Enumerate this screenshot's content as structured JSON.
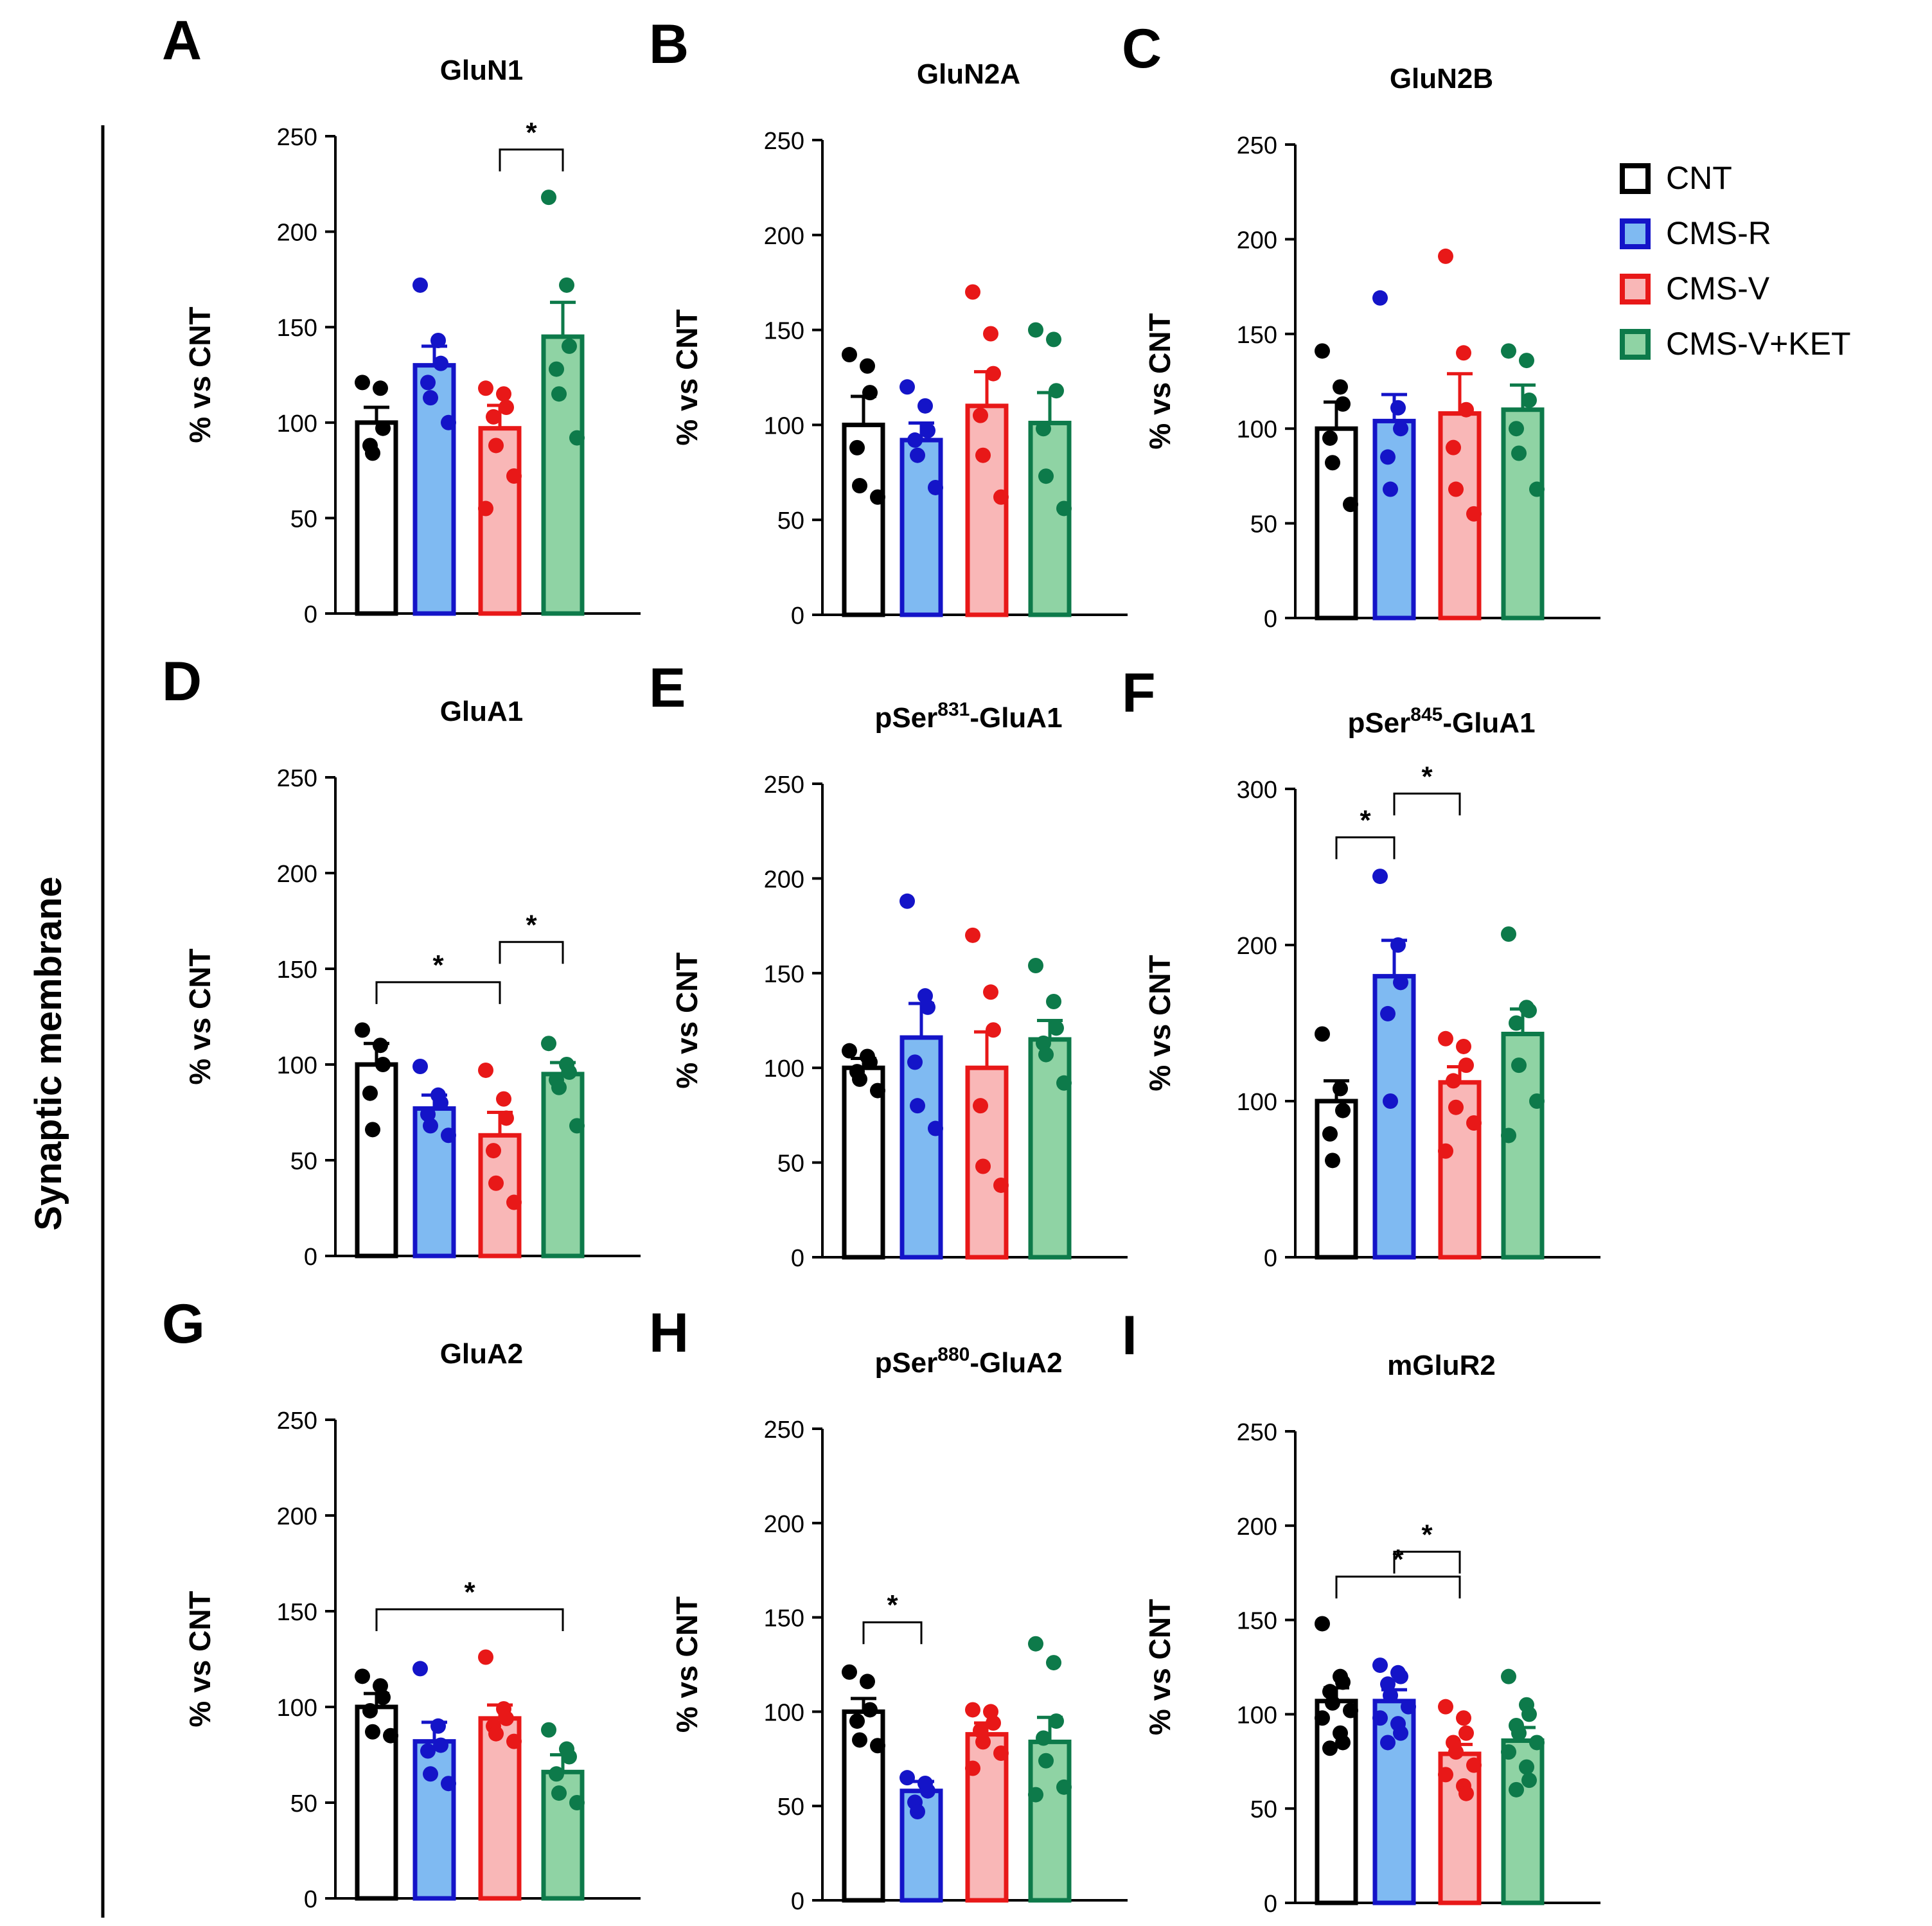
{
  "side_label": "Synaptic membrane",
  "legend": [
    {
      "label": "CNT",
      "fill": "#ffffff",
      "stroke": "#000000"
    },
    {
      "label": "CMS-R",
      "fill": "#7fbaf2",
      "stroke": "#1414c8"
    },
    {
      "label": "CMS-V",
      "fill": "#f9b7b7",
      "stroke": "#e81818"
    },
    {
      "label": "CMS-V+KET",
      "fill": "#8fd3a4",
      "stroke": "#0d7a4a"
    }
  ],
  "colors": {
    "CNT": {
      "fill": "#ffffff",
      "stroke": "#000000",
      "dot": "#000000"
    },
    "CMS-R": {
      "fill": "#7fbaf2",
      "stroke": "#1414c8",
      "dot": "#1414c8"
    },
    "CMS-V": {
      "fill": "#f9b7b7",
      "stroke": "#e81818",
      "dot": "#e81818"
    },
    "CMS-V+KET": {
      "fill": "#8fd3a4",
      "stroke": "#0d7a4a",
      "dot": "#0d7a4a"
    }
  },
  "chart_data": [
    {
      "panel": "A",
      "title": "GluN1",
      "type": "bar",
      "ylabel": "% vs CNT",
      "ylim": [
        0,
        250
      ],
      "yticks": [
        0,
        50,
        100,
        150,
        200,
        250
      ],
      "categories": [
        "CNT",
        "CMS-R",
        "CMS-V",
        "CMS-V+KET"
      ],
      "means": [
        100,
        130,
        97,
        145
      ],
      "sem": [
        8,
        10,
        12,
        18
      ],
      "points": [
        [
          121,
          118,
          97,
          88,
          84
        ],
        [
          172,
          143,
          131,
          121,
          113,
          100
        ],
        [
          118,
          115,
          108,
          103,
          88,
          72,
          55
        ],
        [
          218,
          172,
          140,
          128,
          115,
          92
        ]
      ],
      "sig": [
        {
          "from": 2,
          "to": 3,
          "label": "*"
        }
      ]
    },
    {
      "panel": "B",
      "title": "GluN2A",
      "type": "bar",
      "ylabel": "% vs CNT",
      "ylim": [
        0,
        250
      ],
      "yticks": [
        0,
        50,
        100,
        150,
        200,
        250
      ],
      "categories": [
        "CNT",
        "CMS-R",
        "CMS-V",
        "CMS-V+KET"
      ],
      "means": [
        100,
        92,
        110,
        101
      ],
      "sem": [
        15,
        9,
        18,
        16
      ],
      "points": [
        [
          137,
          131,
          117,
          88,
          68,
          62
        ],
        [
          120,
          110,
          97,
          92,
          84,
          67
        ],
        [
          170,
          148,
          127,
          105,
          84,
          62
        ],
        [
          150,
          145,
          118,
          98,
          73,
          56
        ]
      ],
      "sig": []
    },
    {
      "panel": "C",
      "title": "GluN2B",
      "type": "bar",
      "ylabel": "% vs CNT",
      "ylim": [
        0,
        250
      ],
      "yticks": [
        0,
        50,
        100,
        150,
        200,
        250
      ],
      "categories": [
        "CNT",
        "CMS-R",
        "CMS-V",
        "CMS-V+KET"
      ],
      "means": [
        100,
        104,
        108,
        110
      ],
      "sem": [
        14,
        14,
        21,
        13
      ],
      "points": [
        [
          141,
          122,
          113,
          95,
          82,
          60
        ],
        [
          169,
          111,
          100,
          85,
          68
        ],
        [
          191,
          140,
          110,
          90,
          68,
          55
        ],
        [
          141,
          136,
          115,
          100,
          87,
          68
        ]
      ],
      "sig": []
    },
    {
      "panel": "D",
      "title": "GluA1",
      "type": "bar",
      "ylabel": "% vs CNT",
      "ylim": [
        0,
        250
      ],
      "yticks": [
        0,
        50,
        100,
        150,
        200,
        250
      ],
      "categories": [
        "CNT",
        "CMS-R",
        "CMS-V",
        "CMS-V+KET"
      ],
      "means": [
        100,
        77,
        63,
        95
      ],
      "sem": [
        11,
        7,
        12,
        6
      ],
      "points": [
        [
          118,
          110,
          100,
          85,
          66
        ],
        [
          99,
          84,
          80,
          74,
          68,
          63
        ],
        [
          97,
          82,
          72,
          55,
          38,
          28
        ],
        [
          111,
          100,
          96,
          92,
          88,
          68
        ]
      ],
      "sig": [
        {
          "from": 0,
          "to": 2,
          "label": "*"
        },
        {
          "from": 2,
          "to": 3,
          "label": "*"
        }
      ]
    },
    {
      "panel": "E",
      "title": "pSer831-GluA1",
      "title_parts": [
        "pSer",
        "831",
        "-GluA1"
      ],
      "type": "bar",
      "ylabel": "% vs CNT",
      "ylim": [
        0,
        250
      ],
      "yticks": [
        0,
        50,
        100,
        150,
        200,
        250
      ],
      "categories": [
        "CNT",
        "CMS-R",
        "CMS-V",
        "CMS-V+KET"
      ],
      "means": [
        100,
        116,
        100,
        115
      ],
      "sem": [
        5,
        18,
        19,
        10
      ],
      "points": [
        [
          109,
          106,
          103,
          98,
          94,
          88
        ],
        [
          188,
          138,
          132,
          103,
          80,
          68
        ],
        [
          170,
          140,
          120,
          80,
          48,
          38
        ],
        [
          154,
          135,
          121,
          113,
          107,
          92
        ]
      ],
      "sig": []
    },
    {
      "panel": "F",
      "title": "pSer845-GluA1",
      "title_parts": [
        "pSer",
        "845",
        "-GluA1"
      ],
      "type": "bar",
      "ylabel": "% vs CNT",
      "ylim": [
        0,
        300
      ],
      "yticks": [
        0,
        100,
        200,
        300
      ],
      "categories": [
        "CNT",
        "CMS-R",
        "CMS-V",
        "CMS-V+KET"
      ],
      "means": [
        100,
        180,
        112,
        143
      ],
      "sem": [
        13,
        23,
        10,
        16
      ],
      "points": [
        [
          143,
          108,
          94,
          79,
          62
        ],
        [
          244,
          200,
          176,
          156,
          100
        ],
        [
          140,
          135,
          123,
          113,
          96,
          86,
          68
        ],
        [
          207,
          160,
          158,
          150,
          123,
          100,
          78
        ]
      ],
      "sig": [
        {
          "from": 0,
          "to": 1,
          "label": "*"
        },
        {
          "from": 1,
          "to": 2,
          "label": "*"
        }
      ]
    },
    {
      "panel": "G",
      "title": "GluA2",
      "type": "bar",
      "ylabel": "% vs CNT",
      "ylim": [
        0,
        250
      ],
      "yticks": [
        0,
        50,
        100,
        150,
        200,
        250
      ],
      "categories": [
        "CNT",
        "CMS-R",
        "CMS-V",
        "CMS-V+KET"
      ],
      "means": [
        100,
        82,
        94,
        66
      ],
      "sem": [
        7,
        10,
        7,
        9
      ],
      "points": [
        [
          116,
          111,
          105,
          98,
          87,
          85
        ],
        [
          120,
          90,
          80,
          77,
          65,
          60
        ],
        [
          126,
          99,
          94,
          90,
          86,
          82
        ],
        [
          88,
          78,
          74,
          65,
          55,
          50
        ]
      ],
      "sig": [
        {
          "from": 0,
          "to": 3,
          "label": "*"
        }
      ]
    },
    {
      "panel": "H",
      "title": "pSer880-GluA2",
      "title_parts": [
        "pSer",
        "880",
        "-GluA2"
      ],
      "type": "bar",
      "ylabel": "% vs CNT",
      "ylim": [
        0,
        250
      ],
      "yticks": [
        0,
        50,
        100,
        150,
        200,
        250
      ],
      "categories": [
        "CNT",
        "CMS-R",
        "CMS-V",
        "CMS-V+KET"
      ],
      "means": [
        100,
        58,
        88,
        84
      ],
      "sem": [
        7,
        5,
        6,
        13
      ],
      "points": [
        [
          121,
          116,
          101,
          95,
          85,
          82
        ],
        [
          65,
          62,
          58,
          52,
          47
        ],
        [
          101,
          100,
          94,
          90,
          84,
          78,
          70
        ],
        [
          136,
          126,
          95,
          86,
          74,
          60,
          56
        ]
      ],
      "sig": [
        {
          "from": 0,
          "to": 1,
          "label": "*"
        }
      ]
    },
    {
      "panel": "I",
      "title": "mGluR2",
      "type": "bar",
      "ylabel": "% vs CNT",
      "ylim": [
        0,
        250
      ],
      "yticks": [
        0,
        50,
        100,
        150,
        200,
        250
      ],
      "categories": [
        "CNT",
        "CMS-R",
        "CMS-V",
        "CMS-V+KET"
      ],
      "means": [
        107,
        107,
        79,
        86
      ],
      "sem": [
        7,
        6,
        5,
        7
      ],
      "points": [
        [
          148,
          120,
          117,
          112,
          106,
          102,
          98,
          90,
          85,
          82
        ],
        [
          126,
          122,
          120,
          116,
          110,
          104,
          98,
          95,
          90,
          85
        ],
        [
          104,
          98,
          90,
          85,
          80,
          73,
          68,
          62,
          58
        ],
        [
          120,
          105,
          100,
          94,
          90,
          85,
          80,
          72,
          65,
          60
        ]
      ],
      "sig": [
        {
          "from": 0,
          "to": 2,
          "label": "*"
        },
        {
          "from": 1,
          "to": 2,
          "label": "*"
        }
      ]
    }
  ]
}
